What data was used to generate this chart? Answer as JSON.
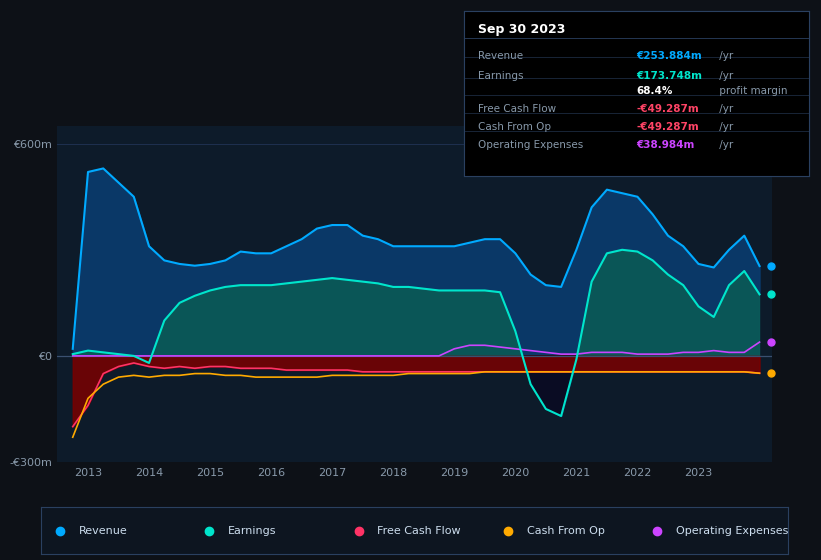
{
  "bg_color": "#0d1117",
  "plot_bg_color": "#0d1b2a",
  "grid_color": "#1e3050",
  "ylim": [
    -300,
    650
  ],
  "yticks": [
    -300,
    0,
    600
  ],
  "ytick_labels": [
    "-€300m",
    "€0",
    "€600m"
  ],
  "xlim": [
    2012.5,
    2024.2
  ],
  "xticks": [
    2013,
    2014,
    2015,
    2016,
    2017,
    2018,
    2019,
    2020,
    2021,
    2022,
    2023
  ],
  "revenue_color": "#00aaff",
  "earnings_color": "#00e5cc",
  "fcf_color": "#ff3366",
  "cashfromop_color": "#ffaa00",
  "opex_color": "#cc44ff",
  "revenue_fill": "#0a3a6b",
  "earnings_fill": "#0a5a5a",
  "legend_bg": "#0d1520",
  "legend_border": "#2a4060",
  "table_bg": "#000000",
  "table_border": "#2a4060",
  "revenue_x": [
    2012.75,
    2013.0,
    2013.25,
    2013.5,
    2013.75,
    2014.0,
    2014.25,
    2014.5,
    2014.75,
    2015.0,
    2015.25,
    2015.5,
    2015.75,
    2016.0,
    2016.25,
    2016.5,
    2016.75,
    2017.0,
    2017.25,
    2017.5,
    2017.75,
    2018.0,
    2018.25,
    2018.5,
    2018.75,
    2019.0,
    2019.25,
    2019.5,
    2019.75,
    2020.0,
    2020.25,
    2020.5,
    2020.75,
    2021.0,
    2021.25,
    2021.5,
    2021.75,
    2022.0,
    2022.25,
    2022.5,
    2022.75,
    2023.0,
    2023.25,
    2023.5,
    2023.75,
    2024.0
  ],
  "revenue_y": [
    20,
    520,
    530,
    490,
    450,
    310,
    270,
    260,
    255,
    260,
    270,
    295,
    290,
    290,
    310,
    330,
    360,
    370,
    370,
    340,
    330,
    310,
    310,
    310,
    310,
    310,
    320,
    330,
    330,
    290,
    230,
    200,
    195,
    300,
    420,
    470,
    460,
    450,
    400,
    340,
    310,
    260,
    250,
    300,
    340,
    254
  ],
  "earnings_x": [
    2012.75,
    2013.0,
    2013.25,
    2013.5,
    2013.75,
    2014.0,
    2014.25,
    2014.5,
    2014.75,
    2015.0,
    2015.25,
    2015.5,
    2015.75,
    2016.0,
    2016.25,
    2016.5,
    2016.75,
    2017.0,
    2017.25,
    2017.5,
    2017.75,
    2018.0,
    2018.25,
    2018.5,
    2018.75,
    2019.0,
    2019.25,
    2019.5,
    2019.75,
    2020.0,
    2020.25,
    2020.5,
    2020.75,
    2021.0,
    2021.25,
    2021.5,
    2021.75,
    2022.0,
    2022.25,
    2022.5,
    2022.75,
    2023.0,
    2023.25,
    2023.5,
    2023.75,
    2024.0
  ],
  "earnings_y": [
    5,
    15,
    10,
    5,
    0,
    -20,
    100,
    150,
    170,
    185,
    195,
    200,
    200,
    200,
    205,
    210,
    215,
    220,
    215,
    210,
    205,
    195,
    195,
    190,
    185,
    185,
    185,
    185,
    180,
    70,
    -80,
    -150,
    -170,
    -10,
    210,
    290,
    300,
    295,
    270,
    230,
    200,
    140,
    110,
    200,
    240,
    174
  ],
  "fcf_x": [
    2012.75,
    2013.0,
    2013.25,
    2013.5,
    2013.75,
    2014.0,
    2014.25,
    2014.5,
    2014.75,
    2015.0,
    2015.25,
    2015.5,
    2015.75,
    2016.0,
    2016.25,
    2016.5,
    2016.75,
    2017.0,
    2017.25,
    2017.5,
    2017.75,
    2018.0,
    2018.25,
    2018.5,
    2018.75,
    2019.0,
    2019.25,
    2019.5,
    2019.75,
    2020.0,
    2020.25,
    2020.5,
    2020.75,
    2021.0,
    2021.25,
    2021.5,
    2021.75,
    2022.0,
    2022.25,
    2022.5,
    2022.75,
    2023.0,
    2023.25,
    2023.5,
    2023.75,
    2024.0
  ],
  "fcf_y": [
    -200,
    -140,
    -50,
    -30,
    -20,
    -30,
    -35,
    -30,
    -35,
    -30,
    -30,
    -35,
    -35,
    -35,
    -40,
    -40,
    -40,
    -40,
    -40,
    -45,
    -45,
    -45,
    -45,
    -45,
    -45,
    -45,
    -45,
    -45,
    -45,
    -45,
    -45,
    -45,
    -45,
    -45,
    -45,
    -45,
    -45,
    -45,
    -45,
    -45,
    -45,
    -45,
    -45,
    -45,
    -45,
    -49
  ],
  "cashfromop_x": [
    2012.75,
    2013.0,
    2013.25,
    2013.5,
    2013.75,
    2014.0,
    2014.25,
    2014.5,
    2014.75,
    2015.0,
    2015.25,
    2015.5,
    2015.75,
    2016.0,
    2016.25,
    2016.5,
    2016.75,
    2017.0,
    2017.25,
    2017.5,
    2017.75,
    2018.0,
    2018.25,
    2018.5,
    2018.75,
    2019.0,
    2019.25,
    2019.5,
    2019.75,
    2020.0,
    2020.25,
    2020.5,
    2020.75,
    2021.0,
    2021.25,
    2021.5,
    2021.75,
    2022.0,
    2022.25,
    2022.5,
    2022.75,
    2023.0,
    2023.25,
    2023.5,
    2023.75,
    2024.0
  ],
  "cashfromop_y": [
    -230,
    -120,
    -80,
    -60,
    -55,
    -60,
    -55,
    -55,
    -50,
    -50,
    -55,
    -55,
    -60,
    -60,
    -60,
    -60,
    -60,
    -55,
    -55,
    -55,
    -55,
    -55,
    -50,
    -50,
    -50,
    -50,
    -50,
    -45,
    -45,
    -45,
    -45,
    -45,
    -45,
    -45,
    -45,
    -45,
    -45,
    -45,
    -45,
    -45,
    -45,
    -45,
    -45,
    -45,
    -45,
    -49
  ],
  "opex_x": [
    2012.75,
    2013.0,
    2013.25,
    2013.5,
    2013.75,
    2014.0,
    2014.25,
    2014.5,
    2014.75,
    2015.0,
    2015.25,
    2015.5,
    2015.75,
    2016.0,
    2016.25,
    2016.5,
    2016.75,
    2017.0,
    2017.25,
    2017.5,
    2017.75,
    2018.0,
    2018.25,
    2018.5,
    2018.75,
    2019.0,
    2019.25,
    2019.5,
    2019.75,
    2020.0,
    2020.25,
    2020.5,
    2020.75,
    2021.0,
    2021.25,
    2021.5,
    2021.75,
    2022.0,
    2022.25,
    2022.5,
    2022.75,
    2023.0,
    2023.25,
    2023.5,
    2023.75,
    2024.0
  ],
  "opex_y": [
    0,
    0,
    0,
    0,
    0,
    0,
    0,
    0,
    0,
    0,
    0,
    0,
    0,
    0,
    0,
    0,
    0,
    0,
    0,
    0,
    0,
    0,
    0,
    0,
    0,
    20,
    30,
    30,
    25,
    20,
    15,
    10,
    5,
    5,
    10,
    10,
    10,
    5,
    5,
    5,
    10,
    10,
    15,
    10,
    10,
    39
  ],
  "table_title": "Sep 30 2023",
  "table_rows": [
    {
      "label": "Revenue",
      "value": "€253.884m",
      "suffix": " /yr",
      "value_color": "#00aaff"
    },
    {
      "label": "Earnings",
      "value": "€173.748m",
      "suffix": " /yr",
      "value_color": "#00e5cc"
    },
    {
      "label": "",
      "value": "68.4%",
      "suffix": " profit margin",
      "value_color": "#ffffff"
    },
    {
      "label": "Free Cash Flow",
      "value": "-€49.287m",
      "suffix": " /yr",
      "value_color": "#ff4466"
    },
    {
      "label": "Cash From Op",
      "value": "-€49.287m",
      "suffix": " /yr",
      "value_color": "#ff4466"
    },
    {
      "label": "Operating Expenses",
      "value": "€38.984m",
      "suffix": " /yr",
      "value_color": "#cc44ff"
    }
  ],
  "legend_items": [
    {
      "label": "Revenue",
      "color": "#00aaff"
    },
    {
      "label": "Earnings",
      "color": "#00e5cc"
    },
    {
      "label": "Free Cash Flow",
      "color": "#ff3366"
    },
    {
      "label": "Cash From Op",
      "color": "#ffaa00"
    },
    {
      "label": "Operating Expenses",
      "color": "#cc44ff"
    }
  ]
}
